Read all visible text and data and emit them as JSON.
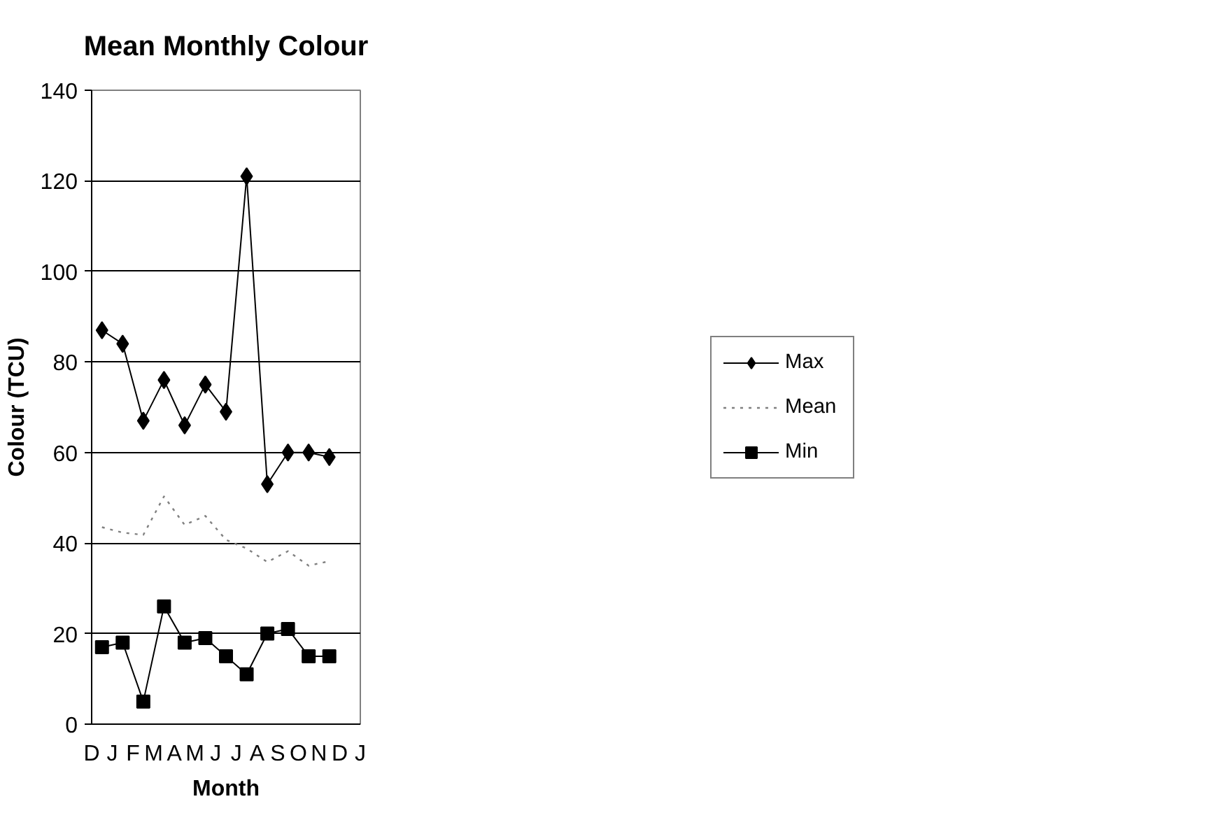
{
  "chart_data": {
    "type": "line",
    "title": "Mean Monthly Colour",
    "xlabel": "Month",
    "ylabel": "Colour (TCU)",
    "categories": [
      "D",
      null,
      "J",
      null,
      "F",
      null,
      "M",
      null,
      "A",
      null,
      "M",
      null,
      "J",
      null,
      "J",
      null,
      "A",
      null,
      "S",
      null,
      "O",
      null,
      "N",
      null,
      "D",
      null,
      "J"
    ],
    "series": [
      {
        "name": "Max",
        "color": "#000000",
        "marker": "diamond",
        "line_style": "solid",
        "values": [
          null,
          87,
          null,
          84,
          null,
          67,
          null,
          76,
          null,
          66,
          null,
          75,
          null,
          69,
          null,
          121,
          null,
          53,
          null,
          60,
          null,
          60,
          null,
          59,
          null,
          null,
          null
        ]
      },
      {
        "name": "Mean",
        "color": "#808080",
        "marker": "none",
        "line_style": "dotted",
        "values": [
          null,
          43.5,
          null,
          42.3,
          null,
          41.8,
          null,
          50.3,
          null,
          44,
          null,
          46,
          null,
          40.7,
          null,
          38.8,
          null,
          35.8,
          null,
          38.2,
          null,
          35,
          null,
          36,
          null,
          null,
          null
        ]
      },
      {
        "name": "Min",
        "color": "#000000",
        "marker": "square",
        "line_style": "solid",
        "values": [
          null,
          17,
          null,
          18,
          null,
          5,
          null,
          26,
          null,
          18,
          null,
          19,
          null,
          15,
          null,
          11,
          null,
          20,
          null,
          21,
          null,
          15,
          null,
          15,
          null,
          null,
          null
        ]
      }
    ],
    "ylim": [
      0,
      140
    ],
    "yticks": [
      0,
      20,
      40,
      60,
      80,
      100,
      120,
      140
    ],
    "grid": "y",
    "legend": "right"
  }
}
